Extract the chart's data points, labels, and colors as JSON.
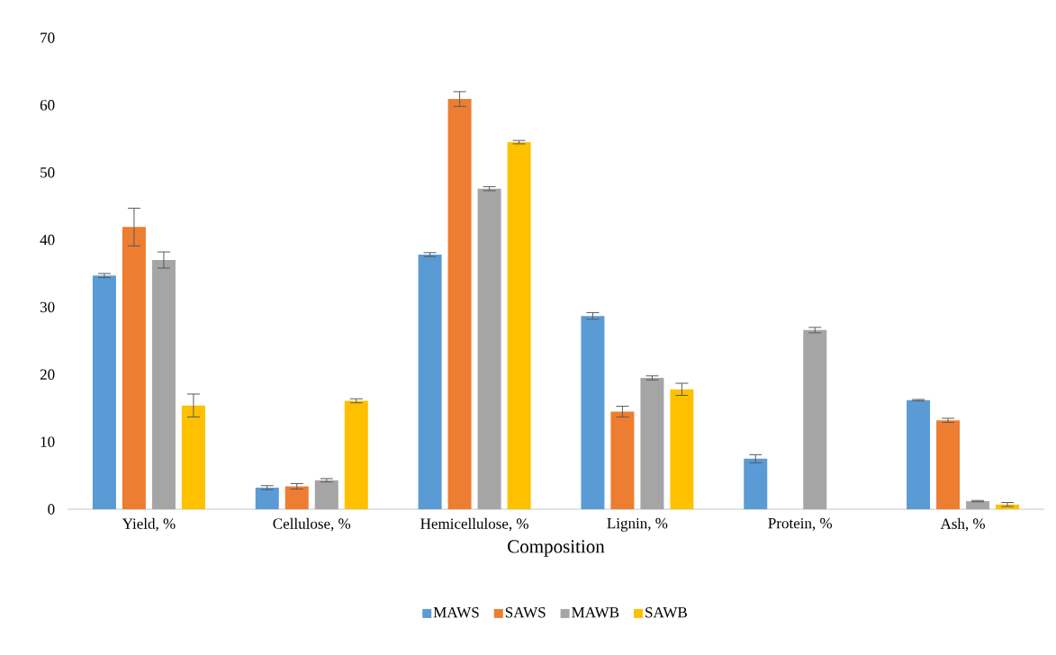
{
  "chart_data": {
    "type": "bar",
    "xlabel": "Composition",
    "categories": [
      "Yield, %",
      "Cellulose, %",
      "Hemicellulose, %",
      "Lignin, %",
      "Protein, %",
      "Ash, %"
    ],
    "series": [
      {
        "name": "MAWS",
        "color": "#5b9bd5",
        "values": [
          34.7,
          3.2,
          37.8,
          28.7,
          7.5,
          16.2
        ],
        "errors": [
          0.3,
          0.3,
          0.3,
          0.5,
          0.6,
          0.1
        ]
      },
      {
        "name": "SAWS",
        "color": "#ed7d31",
        "values": [
          41.9,
          3.4,
          60.9,
          14.5,
          null,
          13.2
        ],
        "errors": [
          2.8,
          0.4,
          1.1,
          0.8,
          null,
          0.3
        ]
      },
      {
        "name": "MAWB",
        "color": "#a5a5a5",
        "values": [
          37.0,
          4.3,
          47.6,
          19.5,
          26.6,
          1.2
        ],
        "errors": [
          1.2,
          0.25,
          0.3,
          0.3,
          0.4,
          0.1
        ]
      },
      {
        "name": "SAWB",
        "color": "#ffc000",
        "values": [
          15.4,
          16.1,
          54.5,
          17.8,
          null,
          0.7
        ],
        "errors": [
          1.7,
          0.3,
          0.25,
          0.9,
          null,
          0.3
        ]
      }
    ],
    "ylim": [
      0,
      70
    ],
    "yticks": [
      0,
      10,
      20,
      30,
      40,
      50,
      60,
      70
    ],
    "grid": false,
    "legend": "bottom"
  }
}
